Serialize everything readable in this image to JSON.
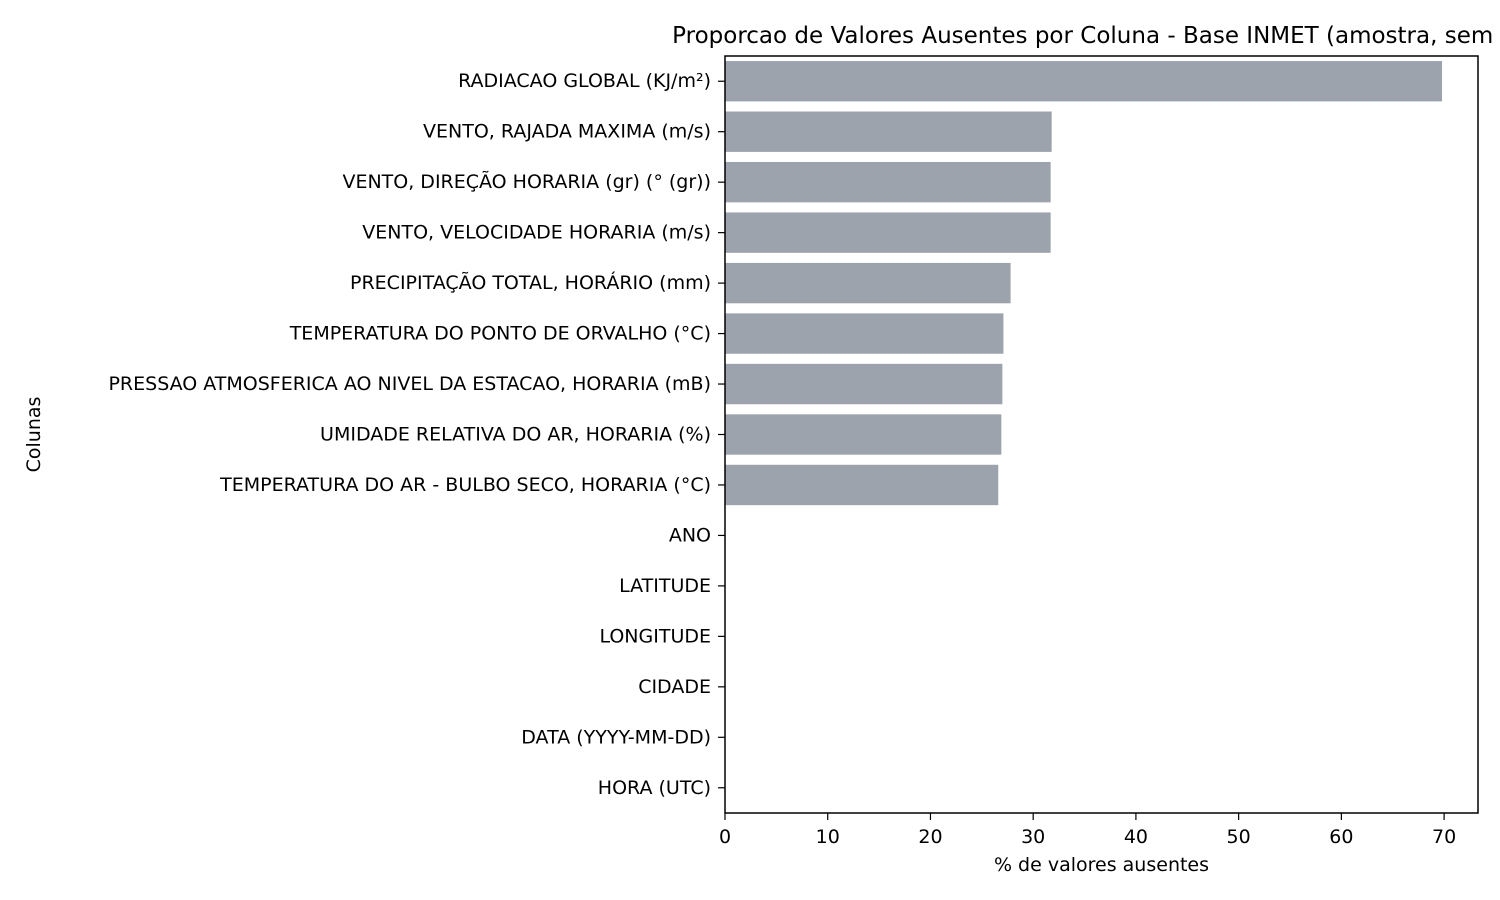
{
  "chart_data": {
    "type": "bar",
    "orientation": "horizontal",
    "title": "Proporcao de Valores Ausentes por Coluna - Base INMET (amostra, sem proc",
    "xlabel": "% de valores ausentes",
    "ylabel": "Colunas",
    "xlim": [
      0,
      73.3
    ],
    "xticks": [
      "0",
      "10",
      "20",
      "30",
      "40",
      "50",
      "60",
      "70"
    ],
    "grid": false,
    "legend": "none",
    "bar_color": "#9ca3ad",
    "categories": [
      "RADIACAO GLOBAL (KJ/m²)",
      "VENTO, RAJADA MAXIMA (m/s)",
      "VENTO, DIREÇÃO HORARIA (gr) (° (gr))",
      "VENTO, VELOCIDADE HORARIA (m/s)",
      "PRECIPITAÇÃO TOTAL, HORÁRIO (mm)",
      "TEMPERATURA DO PONTO DE ORVALHO (°C)",
      "PRESSAO ATMOSFERICA AO NIVEL DA ESTACAO, HORARIA (mB)",
      "UMIDADE RELATIVA DO AR, HORARIA (%)",
      "TEMPERATURA DO AR - BULBO SECO, HORARIA (°C)",
      "ANO",
      "LATITUDE",
      "LONGITUDE",
      "CIDADE",
      "DATA (YYYY-MM-DD)",
      "HORA (UTC)"
    ],
    "values": [
      69.8,
      31.8,
      31.7,
      31.7,
      27.8,
      27.1,
      27.0,
      26.9,
      26.6,
      0,
      0,
      0,
      0,
      0,
      0
    ]
  }
}
